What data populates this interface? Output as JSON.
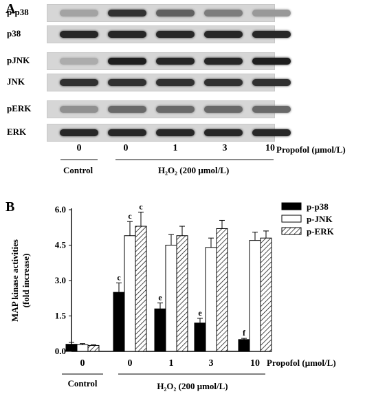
{
  "panel_a": {
    "letter": "A",
    "blots": [
      {
        "label": "p-p38",
        "intensities": [
          0.25,
          0.85,
          0.6,
          0.45,
          0.3
        ]
      },
      {
        "label": "p38",
        "intensities": [
          0.9,
          0.9,
          0.9,
          0.9,
          0.9
        ]
      },
      {
        "label": "pJNK",
        "intensities": [
          0.2,
          0.95,
          0.9,
          0.9,
          0.95
        ]
      },
      {
        "label": "JNK",
        "intensities": [
          0.85,
          0.85,
          0.85,
          0.85,
          0.85
        ]
      },
      {
        "label": "pERK",
        "intensities": [
          0.35,
          0.55,
          0.55,
          0.55,
          0.55
        ]
      },
      {
        "label": "ERK",
        "intensities": [
          0.9,
          0.9,
          0.9,
          0.9,
          0.9
        ]
      }
    ],
    "lanes": [
      "0",
      "0",
      "1",
      "3",
      "10"
    ],
    "propofol_label": "Propofol (μmol/L)",
    "control_label": "Control",
    "h2o2_label": "H₂O₂ (200 μmol/L)"
  },
  "panel_b": {
    "letter": "B",
    "ylabel_line1": "MAP kinase activities",
    "ylabel_line2": "(fold increase)",
    "yticks": [
      "0.0",
      "1.5",
      "3.0",
      "4.5",
      "6.0"
    ],
    "propofol_label": "Propofol (μmol/L)",
    "control_label": "Control",
    "h2o2_label": "H₂O₂ (200 μmol/L)"
  },
  "chart_data": {
    "type": "bar",
    "categories": [
      "0",
      "0",
      "1",
      "3",
      "10"
    ],
    "series": [
      {
        "name": "p-p38",
        "values": [
          0.3,
          2.5,
          1.8,
          1.2,
          0.5
        ],
        "errors": [
          0.08,
          0.4,
          0.25,
          0.2,
          0.05
        ],
        "annotations": [
          "",
          "c",
          "e",
          "e",
          "f"
        ],
        "color": "#000000"
      },
      {
        "name": "p-JNK",
        "values": [
          0.28,
          4.9,
          4.5,
          4.4,
          4.7
        ],
        "errors": [
          0.05,
          0.6,
          0.45,
          0.4,
          0.35
        ],
        "annotations": [
          "",
          "c",
          "",
          "",
          ""
        ],
        "color": "#ffffff"
      },
      {
        "name": "p-ERK",
        "values": [
          0.25,
          5.3,
          4.9,
          5.2,
          4.8
        ],
        "errors": [
          0.03,
          0.6,
          0.4,
          0.35,
          0.3
        ],
        "annotations": [
          "",
          "c",
          "",
          "",
          ""
        ],
        "color": "hatched"
      }
    ],
    "xlabel": "Propofol (μmol/L)",
    "ylabel": "MAP kinase activities (fold increase)",
    "ylim": [
      0,
      6
    ],
    "legend_position": "top-right"
  }
}
